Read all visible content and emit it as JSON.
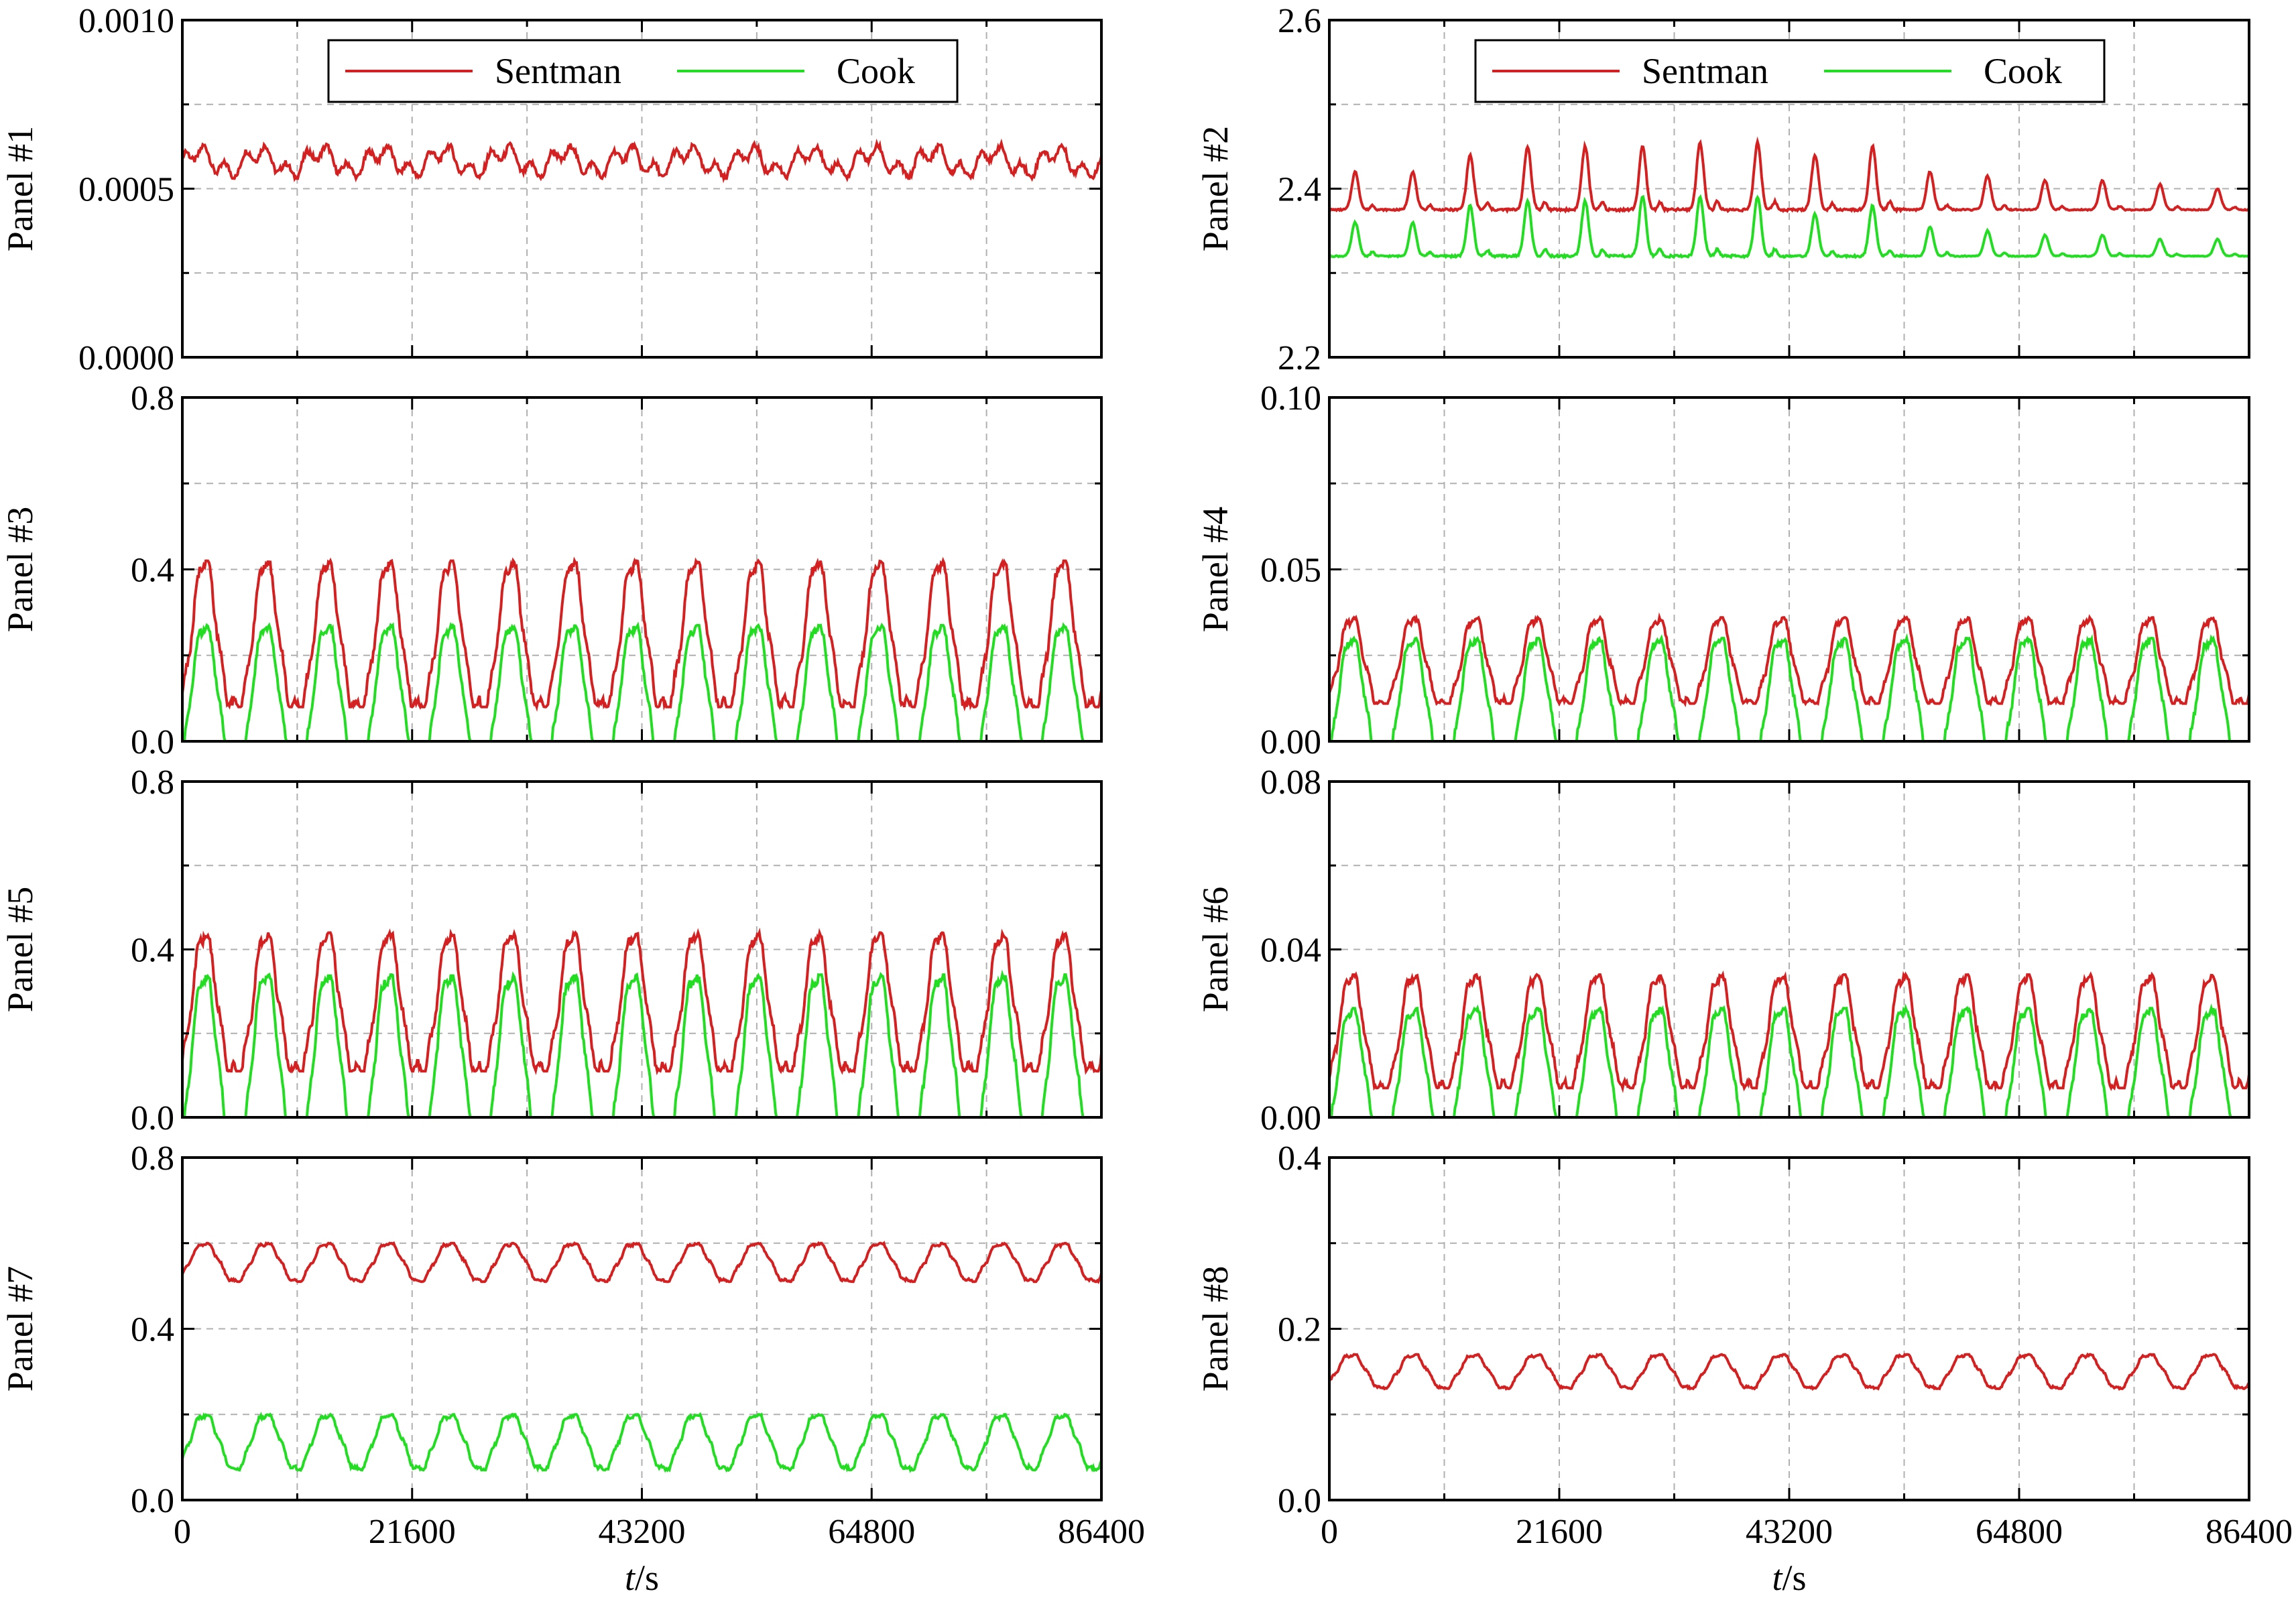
{
  "colors": {
    "sentman": "#d42020",
    "cook": "#22dd22",
    "grid": "#b0b0b0",
    "axis": "#000000"
  },
  "legend_labels": {
    "sentman": "Sentman",
    "cook": "Cook"
  },
  "xlabel_italic": "t",
  "xlabel_rest": "/s",
  "chart_data": [
    {
      "panel": 1,
      "type": "line",
      "ylabel": "Panel #1",
      "ylim": [
        0,
        0.001
      ],
      "yticks": [
        "0.0000",
        "0.0005",
        "0.0010"
      ],
      "ytick_values": [
        0,
        0.0005,
        0.001
      ],
      "xlim": [
        0,
        86400
      ],
      "xticks": [],
      "legend": true,
      "legend_position": "top-center",
      "grid": true,
      "series": [
        {
          "name": "Sentman",
          "base": 0.00058,
          "amp": 3e-05,
          "peak_amp": 3e-05,
          "min": 0.00053,
          "max": 0.00064,
          "cycles": 15
        },
        {
          "name": "Cook",
          "constant": 0
        }
      ]
    },
    {
      "panel": 2,
      "type": "line",
      "ylabel": "Panel #2",
      "ylim": [
        2.2,
        2.6
      ],
      "yticks": [
        "2.2",
        "2.4",
        "2.6"
      ],
      "ytick_values": [
        2.2,
        2.4,
        2.6
      ],
      "xlim": [
        0,
        86400
      ],
      "xticks": [],
      "legend": true,
      "legend_position": "top-center",
      "grid": true,
      "series": [
        {
          "name": "Sentman",
          "baseline": 2.375,
          "peaks": [
            2.42,
            2.42,
            2.44,
            2.45,
            2.45,
            2.45,
            2.455,
            2.455,
            2.44,
            2.45,
            2.42,
            2.415,
            2.41,
            2.41,
            2.405,
            2.4
          ]
        },
        {
          "name": "Cook",
          "baseline": 2.32,
          "peaks": [
            2.36,
            2.36,
            2.38,
            2.385,
            2.385,
            2.39,
            2.39,
            2.39,
            2.37,
            2.38,
            2.355,
            2.35,
            2.345,
            2.345,
            2.34,
            2.34
          ]
        }
      ]
    },
    {
      "panel": 3,
      "type": "line",
      "ylabel": "Panel #3",
      "ylim": [
        0,
        0.8
      ],
      "yticks": [
        "0.0",
        "0.4",
        "0.8"
      ],
      "ytick_values": [
        0,
        0.4,
        0.8
      ],
      "xlim": [
        0,
        86400
      ],
      "xticks": [],
      "legend": false,
      "grid": true,
      "series": [
        {
          "name": "Sentman",
          "min": 0.08,
          "max": 0.42,
          "cycles": 15
        },
        {
          "name": "Cook",
          "min": 0.0,
          "max": 0.27,
          "cycles": 15
        }
      ]
    },
    {
      "panel": 4,
      "type": "line",
      "ylabel": "Panel #4",
      "ylim": [
        0,
        0.1
      ],
      "yticks": [
        "0.00",
        "0.05",
        "0.10"
      ],
      "ytick_values": [
        0,
        0.05,
        0.1
      ],
      "xlim": [
        0,
        86400
      ],
      "xticks": [],
      "legend": false,
      "grid": true,
      "series": [
        {
          "name": "Sentman",
          "min": 0.011,
          "max": 0.036,
          "cycles": 15
        },
        {
          "name": "Cook",
          "min": 0.0,
          "max": 0.03,
          "cycles": 15
        }
      ]
    },
    {
      "panel": 5,
      "type": "line",
      "ylabel": "Panel #5",
      "ylim": [
        0,
        0.8
      ],
      "yticks": [
        "0.0",
        "0.4",
        "0.8"
      ],
      "ytick_values": [
        0,
        0.4,
        0.8
      ],
      "xlim": [
        0,
        86400
      ],
      "xticks": [],
      "legend": false,
      "grid": true,
      "series": [
        {
          "name": "Sentman",
          "min": 0.11,
          "max": 0.44,
          "cycles": 15
        },
        {
          "name": "Cook",
          "min": 0.0,
          "max": 0.34,
          "cycles": 15
        }
      ]
    },
    {
      "panel": 6,
      "type": "line",
      "ylabel": "Panel #6",
      "ylim": [
        0,
        0.08
      ],
      "yticks": [
        "0.00",
        "0.04",
        "0.08"
      ],
      "ytick_values": [
        0,
        0.04,
        0.08
      ],
      "xlim": [
        0,
        86400
      ],
      "xticks": [],
      "legend": false,
      "grid": true,
      "series": [
        {
          "name": "Sentman",
          "min": 0.007,
          "max": 0.034,
          "cycles": 15
        },
        {
          "name": "Cook",
          "min": 0.0,
          "max": 0.026,
          "cycles": 15
        }
      ]
    },
    {
      "panel": 7,
      "type": "line",
      "ylabel": "Panel #7",
      "ylim": [
        0,
        0.8
      ],
      "yticks": [
        "0.0",
        "0.4",
        "0.8"
      ],
      "ytick_values": [
        0,
        0.4,
        0.8
      ],
      "xlim": [
        0,
        86400
      ],
      "xticks": [
        "0",
        "21600",
        "43200",
        "64800",
        "86400"
      ],
      "xtick_values": [
        0,
        21600,
        43200,
        64800,
        86400
      ],
      "xlabel": true,
      "legend": false,
      "grid": true,
      "series": [
        {
          "name": "Sentman",
          "min": 0.51,
          "max": 0.6,
          "cycles": 15
        },
        {
          "name": "Cook",
          "min": 0.07,
          "max": 0.2,
          "cycles": 15
        }
      ]
    },
    {
      "panel": 8,
      "type": "line",
      "ylabel": "Panel #8",
      "ylim": [
        0,
        0.4
      ],
      "yticks": [
        "0.0",
        "0.2",
        "0.4"
      ],
      "ytick_values": [
        0,
        0.2,
        0.4
      ],
      "xlim": [
        0,
        86400
      ],
      "xticks": [
        "0",
        "21600",
        "43200",
        "64800",
        "86400"
      ],
      "xtick_values": [
        0,
        21600,
        43200,
        64800,
        86400
      ],
      "xlabel": true,
      "legend": false,
      "grid": true,
      "series": [
        {
          "name": "Sentman",
          "min": 0.13,
          "max": 0.17,
          "cycles": 15
        },
        {
          "name": "Cook",
          "constant": 0
        }
      ]
    }
  ]
}
